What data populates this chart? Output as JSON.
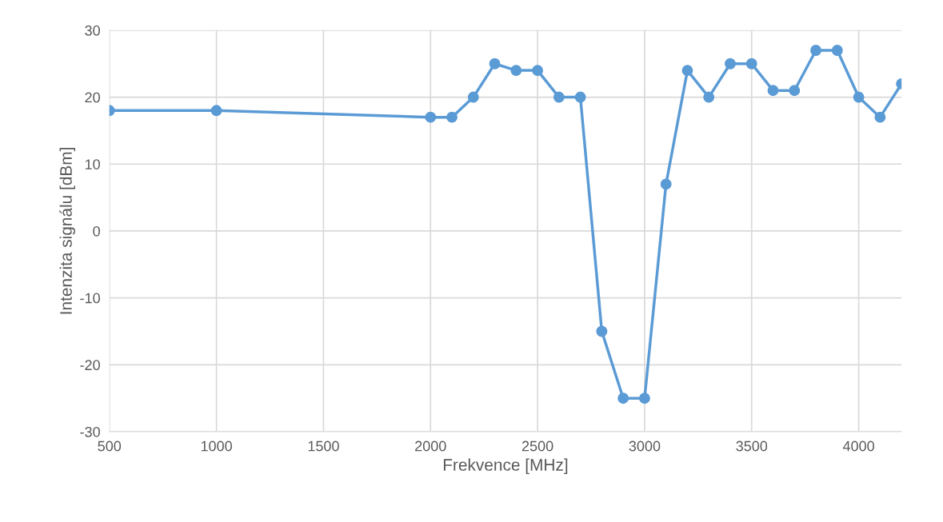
{
  "chart_data": {
    "type": "line",
    "xlabel": "Frekvence [MHz]",
    "ylabel": "Intenzita signálu [dBm]",
    "x": [
      500,
      1000,
      2000,
      2100,
      2200,
      2300,
      2400,
      2500,
      2600,
      2700,
      2800,
      2900,
      3000,
      3100,
      3200,
      3300,
      3400,
      3500,
      3600,
      3700,
      3800,
      3900,
      4000,
      4100,
      4200
    ],
    "series": [
      {
        "color": "#5b9bd5",
        "values": [
          18,
          18,
          17,
          17,
          20,
          25,
          24,
          24,
          20,
          20,
          -15,
          -25,
          -25,
          7,
          24,
          20,
          25,
          25,
          21,
          21,
          27,
          27,
          20,
          17,
          22
        ]
      }
    ],
    "xlim": [
      500,
      4200
    ],
    "xticks": [
      500,
      1000,
      1500,
      2000,
      2500,
      3000,
      3500,
      4000
    ],
    "ylim": [
      -30,
      30
    ],
    "yticks": [
      -30,
      -20,
      -10,
      0,
      10,
      20,
      30
    ],
    "grid": true,
    "marker": "circle",
    "line_style": "solid"
  }
}
